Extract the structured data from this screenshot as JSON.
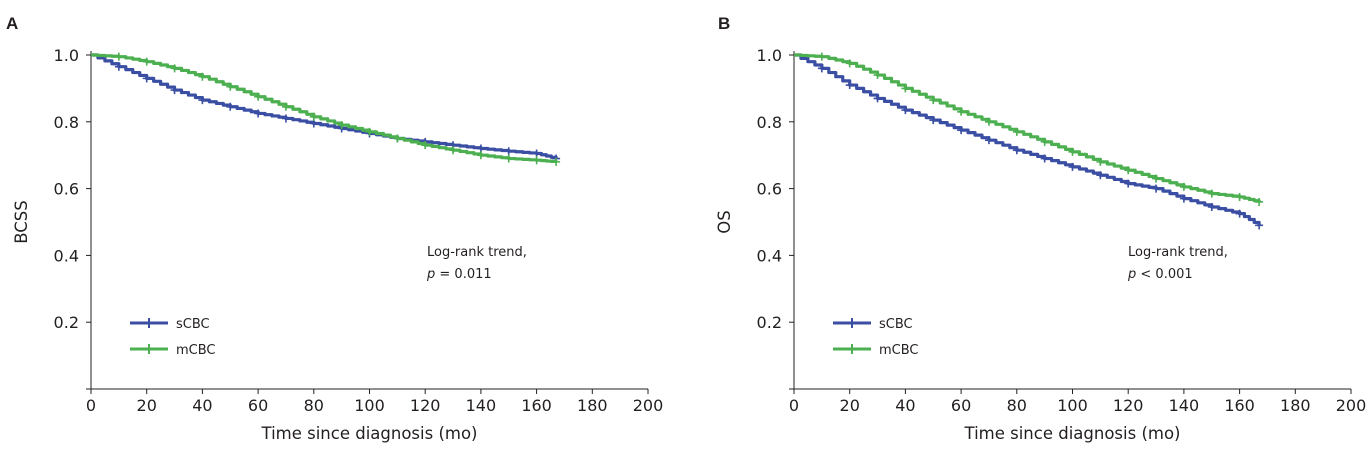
{
  "chart_data": [
    {
      "panel_label": "A",
      "type": "line",
      "ylabel": "BCSS",
      "xlabel": "Time since diagnosis (mo)",
      "xlim": [
        0,
        200
      ],
      "ylim": [
        0,
        1.0
      ],
      "x_ticks": [
        "0",
        "20",
        "40",
        "60",
        "80",
        "100",
        "120",
        "140",
        "160",
        "180",
        "200"
      ],
      "y_ticks": [
        "0.2",
        "0.4",
        "0.6",
        "0.8",
        "1.0"
      ],
      "annotation": {
        "line1": "Log-rank trend,",
        "p_symbol": "p",
        "p_value": " = 0.011"
      },
      "legend_placement": "lower-left",
      "series": [
        {
          "name": "sCBC",
          "color": "#3a4ea3",
          "x": [
            0,
            10,
            20,
            30,
            40,
            50,
            60,
            70,
            80,
            90,
            100,
            110,
            120,
            130,
            140,
            150,
            160,
            167
          ],
          "y": [
            1.0,
            0.965,
            0.93,
            0.895,
            0.865,
            0.845,
            0.825,
            0.81,
            0.795,
            0.78,
            0.765,
            0.75,
            0.74,
            0.73,
            0.72,
            0.712,
            0.705,
            0.69
          ]
        },
        {
          "name": "mCBC",
          "color": "#4caf50",
          "x": [
            0,
            10,
            20,
            30,
            40,
            50,
            60,
            70,
            80,
            90,
            100,
            110,
            120,
            130,
            140,
            150,
            160,
            167
          ],
          "y": [
            1.0,
            0.995,
            0.98,
            0.96,
            0.935,
            0.905,
            0.875,
            0.845,
            0.815,
            0.79,
            0.77,
            0.75,
            0.73,
            0.715,
            0.7,
            0.69,
            0.685,
            0.68
          ]
        }
      ]
    },
    {
      "panel_label": "B",
      "type": "line",
      "ylabel": "OS",
      "xlabel": "Time since diagnosis (mo)",
      "xlim": [
        0,
        200
      ],
      "ylim": [
        0,
        1.0
      ],
      "x_ticks": [
        "0",
        "20",
        "40",
        "60",
        "80",
        "100",
        "120",
        "140",
        "160",
        "180",
        "200"
      ],
      "y_ticks": [
        "0.2",
        "0.4",
        "0.6",
        "0.8",
        "1.0"
      ],
      "annotation": {
        "line1": "Log-rank trend,",
        "p_symbol": "p",
        "p_value": " < 0.001"
      },
      "legend_placement": "lower-left",
      "series": [
        {
          "name": "sCBC",
          "color": "#3a4ea3",
          "x": [
            0,
            10,
            20,
            30,
            40,
            50,
            60,
            70,
            80,
            90,
            100,
            110,
            120,
            130,
            140,
            150,
            160,
            167
          ],
          "y": [
            1.0,
            0.96,
            0.91,
            0.87,
            0.835,
            0.805,
            0.775,
            0.745,
            0.715,
            0.69,
            0.665,
            0.64,
            0.615,
            0.6,
            0.57,
            0.545,
            0.525,
            0.49
          ]
        },
        {
          "name": "mCBC",
          "color": "#4caf50",
          "x": [
            0,
            10,
            20,
            30,
            40,
            50,
            60,
            70,
            80,
            90,
            100,
            110,
            120,
            130,
            140,
            150,
            160,
            167
          ],
          "y": [
            1.0,
            0.995,
            0.975,
            0.94,
            0.9,
            0.865,
            0.83,
            0.8,
            0.77,
            0.74,
            0.71,
            0.68,
            0.655,
            0.63,
            0.605,
            0.585,
            0.575,
            0.56
          ]
        }
      ]
    }
  ]
}
